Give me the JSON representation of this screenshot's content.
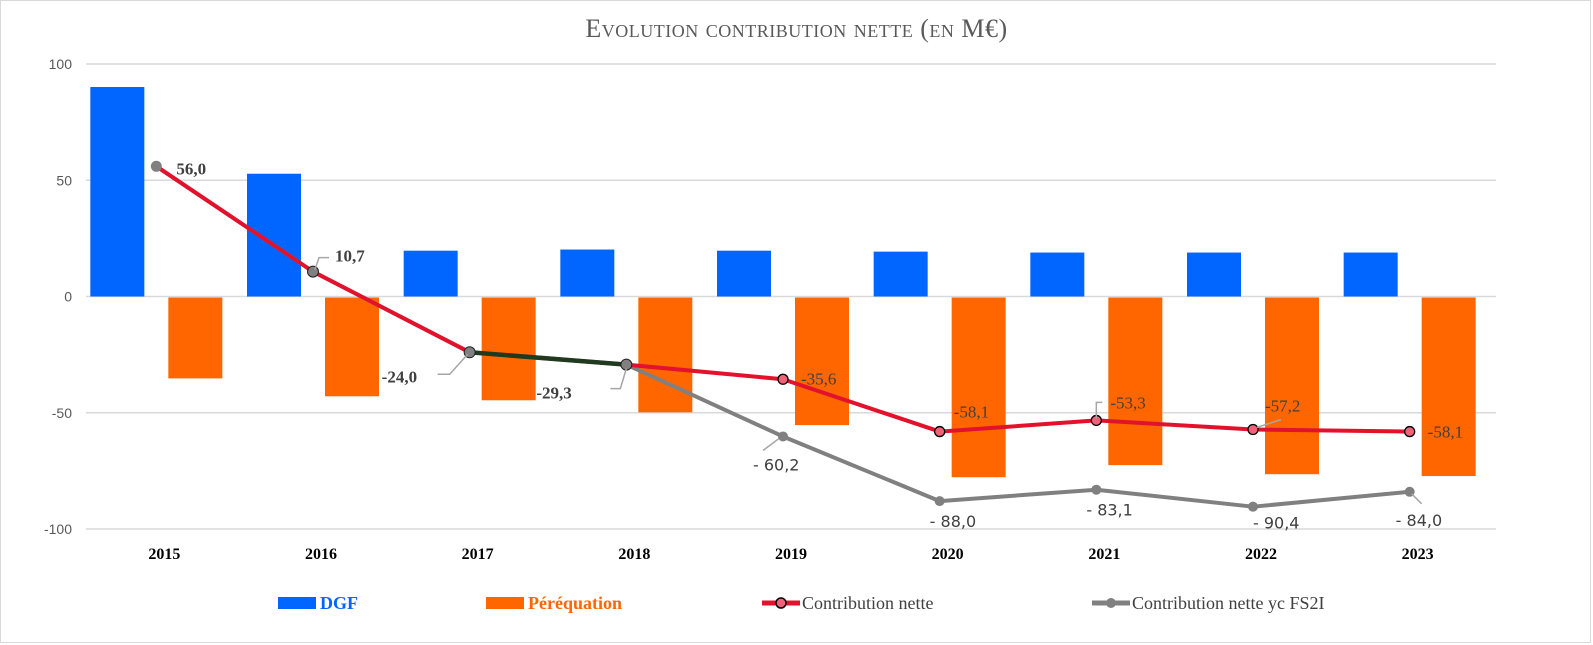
{
  "chart_data": {
    "type": "bar",
    "title": "Evolution contribution nette (en M€)",
    "xlabel": "",
    "ylabel": "",
    "ylim": [
      -100,
      100
    ],
    "yticks": [
      100,
      50,
      0,
      -50,
      -100
    ],
    "grid": true,
    "legend_position": "bottom",
    "categories": [
      "2015",
      "2016",
      "2017",
      "2018",
      "2019",
      "2020",
      "2021",
      "2022",
      "2023"
    ],
    "series": [
      {
        "name": "DGF",
        "kind": "bar",
        "color": "#0066ff",
        "values": [
          90.1,
          52.8,
          19.7,
          20.2,
          19.7,
          19.3,
          18.9,
          18.9,
          18.9
        ]
      },
      {
        "name": "Péréquation",
        "kind": "bar",
        "color": "#ff6600",
        "values": [
          -34.8,
          -42.5,
          -44.2,
          -49.4,
          -54.9,
          -77.3,
          -72.1,
          -76.0,
          -76.8
        ]
      },
      {
        "name": "Contribution nette",
        "kind": "line",
        "color": "#e3122c",
        "marker_fill": "#f06277",
        "values": [
          56.0,
          10.7,
          -24.0,
          -29.3,
          -35.6,
          -58.1,
          -53.3,
          -57.2,
          -58.1
        ],
        "labels": [
          "56,0",
          "10,7",
          "-24,0",
          "-29,3",
          "-35,6",
          "-58,1",
          "-53,3",
          "-57,2",
          "-58,1"
        ]
      },
      {
        "name": "Contribution nette yc FS2I",
        "kind": "line",
        "color": "#808080",
        "values": [
          56.0,
          10.7,
          -24.0,
          -29.3,
          -60.2,
          -88.0,
          -83.1,
          -90.4,
          -84.0
        ],
        "labels": [
          "",
          "",
          "",
          "",
          "- 60,2",
          "- 88,0",
          "- 83,1",
          "- 90,4",
          "- 84,0"
        ]
      }
    ],
    "shared_segment_color": "#1f3a1f"
  },
  "legend": {
    "dgf": "DGF",
    "perequation": "Péréquation",
    "contribution": "Contribution nette",
    "contribution_fs2i": "Contribution nette yc FS2I"
  }
}
